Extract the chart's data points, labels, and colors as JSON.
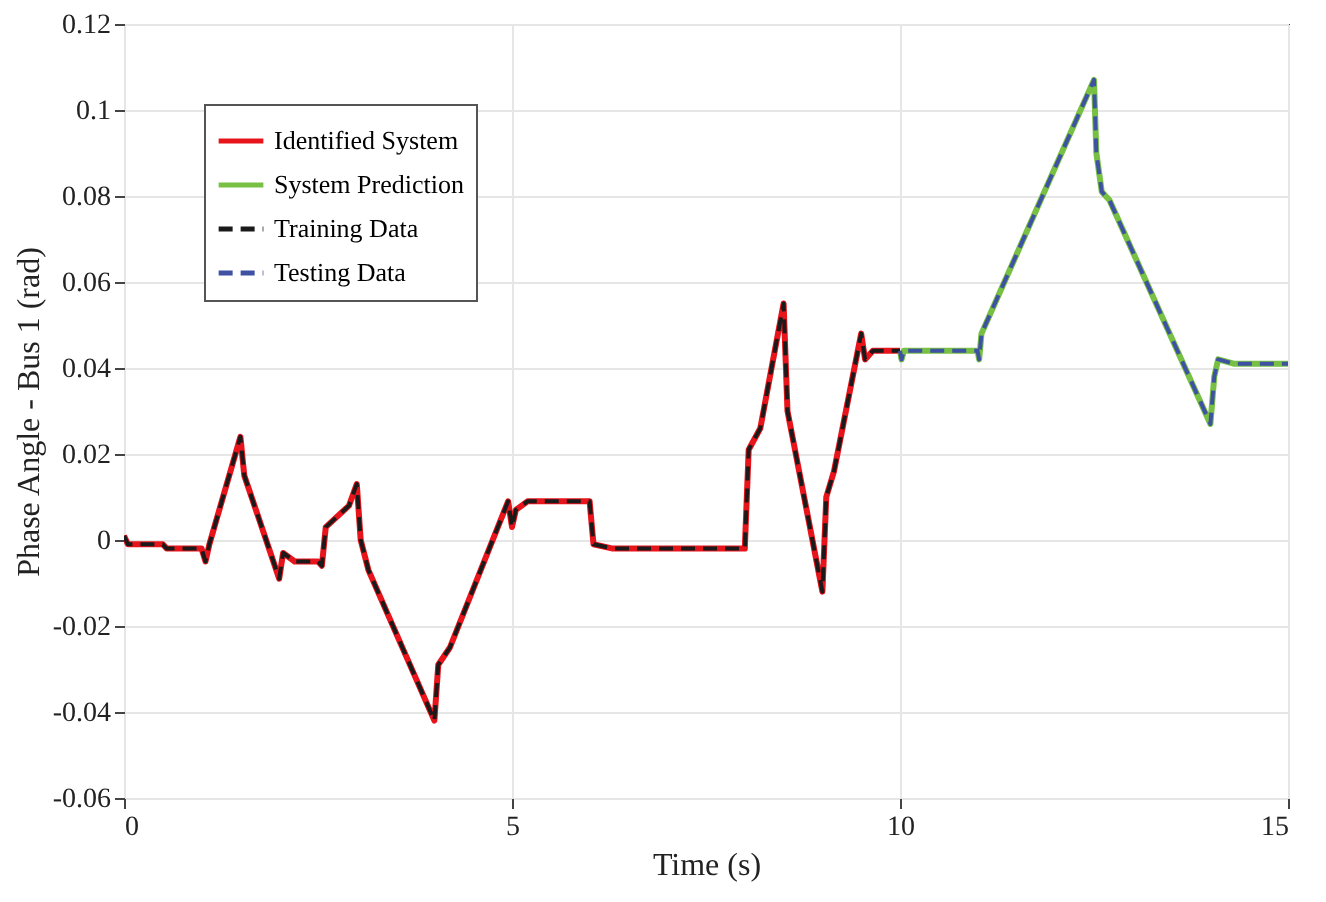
{
  "chart_data": {
    "type": "line",
    "xlabel": "Time (s)",
    "ylabel": "Phase Angle - Bus 1 (rad)",
    "xlim": [
      0,
      15
    ],
    "xticks": [
      0,
      5,
      10,
      15
    ],
    "ylim": [
      -0.06,
      0.12
    ],
    "yticks": [
      -0.06,
      -0.04,
      -0.02,
      0,
      0.02,
      0.04,
      0.06,
      0.08,
      0.1,
      0.12
    ],
    "grid": true,
    "legend": "top left",
    "marker": "none",
    "series": [
      {
        "name": "Identified System",
        "color": "#e8141b",
        "line_style": "solid",
        "x": [
          0,
          0.05,
          0.5,
          0.55,
          1.0,
          1.05,
          1.1,
          1.5,
          1.55,
          2.0,
          2.05,
          2.2,
          2.5,
          2.55,
          2.6,
          2.9,
          3.0,
          3.05,
          3.15,
          4.0,
          4.05,
          4.2,
          4.95,
          5.0,
          5.05,
          5.2,
          6.0,
          6.05,
          6.3,
          8.0,
          8.05,
          8.2,
          8.5,
          8.55,
          9.0,
          9.05,
          9.15,
          9.5,
          9.55,
          9.65,
          10.0
        ],
        "values": [
          0.001,
          -0.001,
          -0.001,
          -0.002,
          -0.002,
          -0.005,
          -0.001,
          0.024,
          0.015,
          -0.009,
          -0.003,
          -0.005,
          -0.005,
          -0.006,
          0.003,
          0.008,
          0.013,
          0.0,
          -0.007,
          -0.042,
          -0.029,
          -0.025,
          0.009,
          0.003,
          0.007,
          0.009,
          0.009,
          -0.001,
          -0.002,
          -0.002,
          0.021,
          0.026,
          0.055,
          0.03,
          -0.012,
          0.01,
          0.016,
          0.048,
          0.042,
          0.044,
          0.044
        ]
      },
      {
        "name": "System Prediction",
        "color": "#77c043",
        "line_style": "solid",
        "x": [
          10,
          10.02,
          10.05,
          11.0,
          11.02,
          11.05,
          12.5,
          12.53,
          12.6,
          12.7,
          14.0,
          14.05,
          14.1,
          14.3,
          15
        ],
        "values": [
          0.044,
          0.042,
          0.044,
          0.044,
          0.042,
          0.048,
          0.107,
          0.09,
          0.081,
          0.079,
          0.027,
          0.038,
          0.042,
          0.041,
          0.041
        ]
      },
      {
        "name": "Training Data",
        "color": "#1a1a1a",
        "line_style": "dashed",
        "x": [
          0,
          0.05,
          0.5,
          0.55,
          1.0,
          1.05,
          1.1,
          1.5,
          1.55,
          2.0,
          2.05,
          2.2,
          2.5,
          2.55,
          2.6,
          2.9,
          3.0,
          3.05,
          3.15,
          4.0,
          4.05,
          4.2,
          4.95,
          5.0,
          5.05,
          5.2,
          6.0,
          6.05,
          6.3,
          8.0,
          8.05,
          8.2,
          8.5,
          8.55,
          9.0,
          9.05,
          9.15,
          9.5,
          9.55,
          9.65,
          10.0
        ],
        "values": [
          0.001,
          -0.001,
          -0.001,
          -0.002,
          -0.002,
          -0.005,
          -0.001,
          0.024,
          0.015,
          -0.009,
          -0.003,
          -0.005,
          -0.005,
          -0.006,
          0.003,
          0.008,
          0.013,
          0.0,
          -0.007,
          -0.042,
          -0.029,
          -0.025,
          0.009,
          0.003,
          0.007,
          0.009,
          0.009,
          -0.001,
          -0.002,
          -0.002,
          0.021,
          0.026,
          0.055,
          0.03,
          -0.012,
          0.01,
          0.016,
          0.048,
          0.042,
          0.044,
          0.044
        ]
      },
      {
        "name": "Testing Data",
        "color": "#3f51a3",
        "line_style": "dashed",
        "x": [
          10,
          10.02,
          10.05,
          11.0,
          11.02,
          11.05,
          12.5,
          12.53,
          12.6,
          12.7,
          14.0,
          14.05,
          14.1,
          14.3,
          15
        ],
        "values": [
          0.044,
          0.042,
          0.044,
          0.044,
          0.042,
          0.048,
          0.107,
          0.09,
          0.081,
          0.079,
          0.027,
          0.038,
          0.042,
          0.041,
          0.041
        ]
      }
    ]
  }
}
